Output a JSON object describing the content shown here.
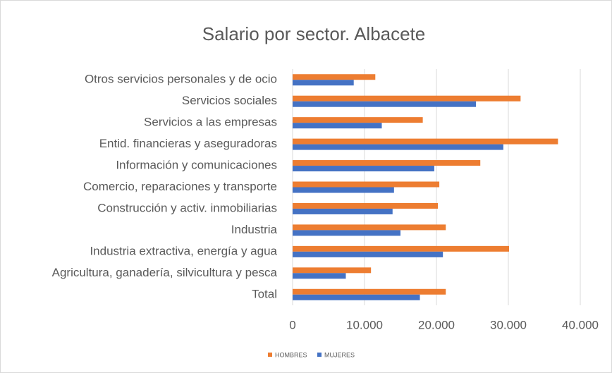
{
  "chart_data": {
    "type": "bar",
    "orientation": "horizontal",
    "title": "Salario por sector. Albacete",
    "categories": [
      "Otros servicios personales y de ocio",
      "Servicios sociales",
      "Servicios a las empresas",
      "Entid. financieras y aseguradoras",
      "Información y comunicaciones",
      "Comercio, reparaciones y transporte",
      "Construcción y activ. inmobiliarias",
      "Industria",
      "Industria extractiva, energía y agua",
      "Agricultura, ganadería, silvicultura y pesca",
      "Total"
    ],
    "series": [
      {
        "name": "HOMBRES",
        "color": "#ED7D31",
        "values": [
          11500,
          31700,
          18100,
          36900,
          26100,
          20400,
          20200,
          21300,
          30100,
          10900,
          21300
        ]
      },
      {
        "name": "MUJERES",
        "color": "#4472C4",
        "values": [
          8500,
          25500,
          12400,
          29300,
          19700,
          14100,
          13900,
          15000,
          20900,
          7400,
          17700
        ]
      }
    ],
    "xlim": [
      0,
      40000
    ],
    "xticks": [
      0,
      {
        "value": 10000,
        "label": "10.000"
      },
      {
        "value": 20000,
        "label": "20.000"
      },
      {
        "value": 30000,
        "label": "30.000"
      },
      {
        "value": 40000,
        "label": "40.000"
      }
    ],
    "grid": true,
    "legend": "bottom"
  }
}
